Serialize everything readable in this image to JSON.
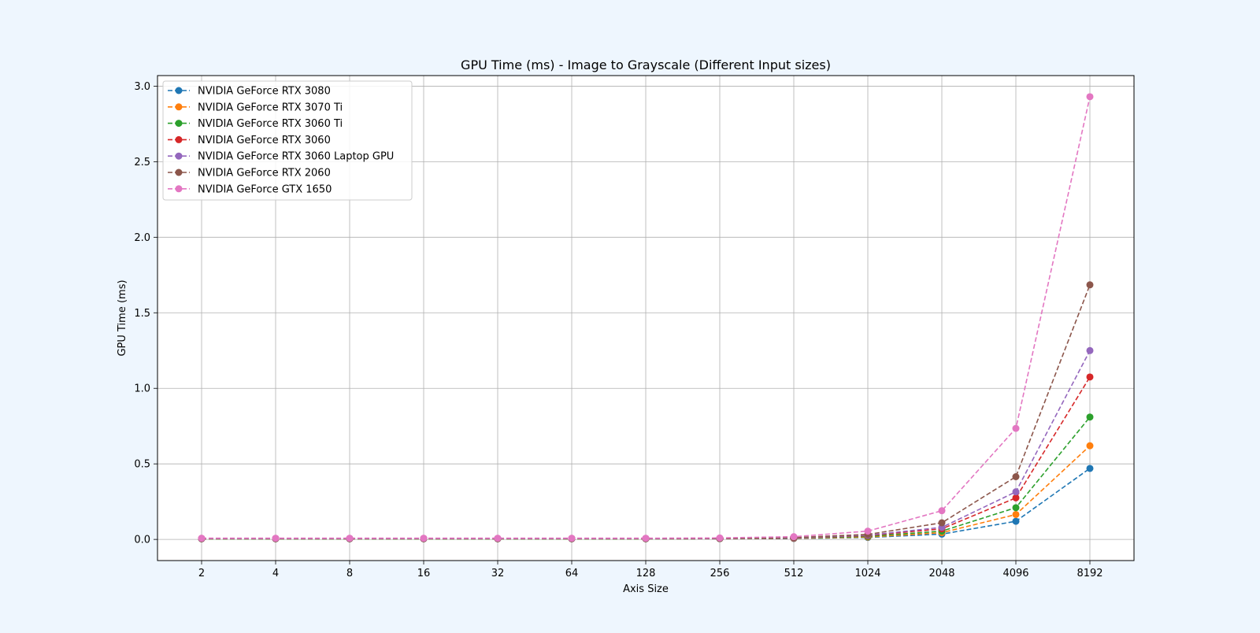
{
  "chart_data": {
    "type": "line",
    "title": "GPU Time (ms) - Image to Grayscale (Different Input sizes)",
    "xlabel": "Axis Size",
    "ylabel": "GPU Time (ms)",
    "categories": [
      "2",
      "4",
      "8",
      "16",
      "32",
      "64",
      "128",
      "256",
      "512",
      "1024",
      "2048",
      "4096",
      "8192"
    ],
    "ylim": [
      -0.14,
      3.07
    ],
    "yticks": [
      "0.0",
      "0.5",
      "1.0",
      "1.5",
      "2.0",
      "2.5",
      "3.0"
    ],
    "grid": true,
    "legend_position": "top-left",
    "line_style": "dashed",
    "marker": "circle",
    "series": [
      {
        "name": "NVIDIA GeForce RTX 3080",
        "color": "#1f77b4",
        "values": [
          0.004,
          0.004,
          0.004,
          0.004,
          0.004,
          0.004,
          0.004,
          0.005,
          0.006,
          0.013,
          0.035,
          0.12,
          0.47
        ]
      },
      {
        "name": "NVIDIA GeForce RTX 3070 Ti",
        "color": "#ff7f0e",
        "values": [
          0.004,
          0.004,
          0.004,
          0.004,
          0.004,
          0.004,
          0.004,
          0.005,
          0.007,
          0.016,
          0.045,
          0.165,
          0.62
        ]
      },
      {
        "name": "NVIDIA GeForce RTX 3060 Ti",
        "color": "#2ca02c",
        "values": [
          0.004,
          0.004,
          0.004,
          0.004,
          0.004,
          0.004,
          0.004,
          0.005,
          0.008,
          0.02,
          0.055,
          0.21,
          0.81
        ]
      },
      {
        "name": "NVIDIA GeForce RTX 3060",
        "color": "#d62728",
        "values": [
          0.005,
          0.005,
          0.005,
          0.005,
          0.005,
          0.005,
          0.005,
          0.006,
          0.009,
          0.025,
          0.07,
          0.275,
          1.075
        ]
      },
      {
        "name": "NVIDIA GeForce RTX 3060 Laptop GPU",
        "color": "#9467bd",
        "values": [
          0.005,
          0.005,
          0.005,
          0.005,
          0.005,
          0.005,
          0.005,
          0.006,
          0.01,
          0.028,
          0.08,
          0.315,
          1.25
        ]
      },
      {
        "name": "NVIDIA GeForce RTX 2060",
        "color": "#8c564b",
        "values": [
          0.006,
          0.006,
          0.006,
          0.006,
          0.006,
          0.006,
          0.006,
          0.007,
          0.012,
          0.033,
          0.11,
          0.415,
          1.685
        ]
      },
      {
        "name": "NVIDIA GeForce GTX 1650",
        "color": "#e377c2",
        "values": [
          0.008,
          0.008,
          0.008,
          0.008,
          0.008,
          0.008,
          0.008,
          0.01,
          0.018,
          0.055,
          0.19,
          0.735,
          2.93
        ]
      }
    ]
  }
}
